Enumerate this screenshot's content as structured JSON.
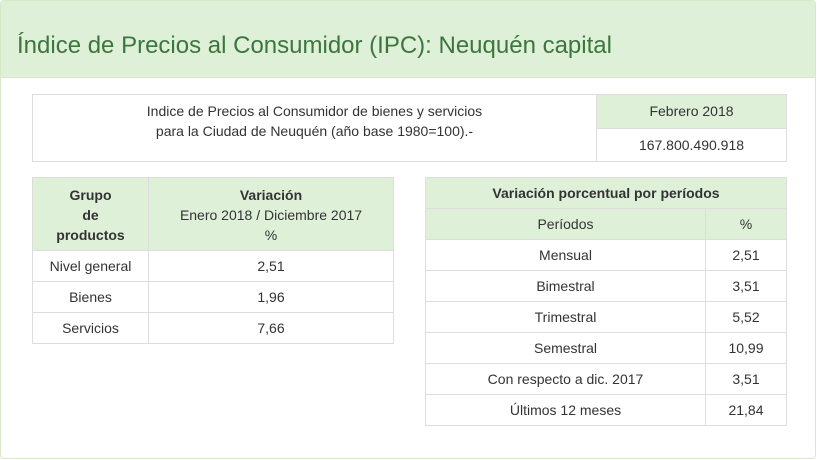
{
  "page": {
    "title": "Índice de Precios al Consumidor (IPC): Neuquén capital"
  },
  "summary": {
    "description_line1": "Indice de Precios al Consumidor de bienes y servicios",
    "description_line2": "para la Ciudad de Neuquén (año base 1980=100).-",
    "month_header": "Febrero 2018",
    "month_value": "167.800.490.918"
  },
  "groups_table": {
    "header_group": [
      "Grupo",
      "de",
      "productos"
    ],
    "header_variation": [
      "Variación",
      "Enero 2018 / Diciembre 2017",
      "%"
    ],
    "rows": [
      {
        "label": "Nivel general",
        "value": "2,51"
      },
      {
        "label": "Bienes",
        "value": "1,96"
      },
      {
        "label": "Servicios",
        "value": "7,66"
      }
    ]
  },
  "periods_table": {
    "title": "Variación porcentual por períodos",
    "col_period": "Períodos",
    "col_percent": "%",
    "rows": [
      {
        "label": "Mensual",
        "value": "2,51"
      },
      {
        "label": "Bimestral",
        "value": "3,51"
      },
      {
        "label": "Trimestral",
        "value": "5,52"
      },
      {
        "label": "Semestral",
        "value": "10,99"
      },
      {
        "label": "Con respecto a dic. 2017",
        "value": "3,51"
      },
      {
        "label": "Últimos 12 meses",
        "value": "21,84"
      }
    ]
  }
}
